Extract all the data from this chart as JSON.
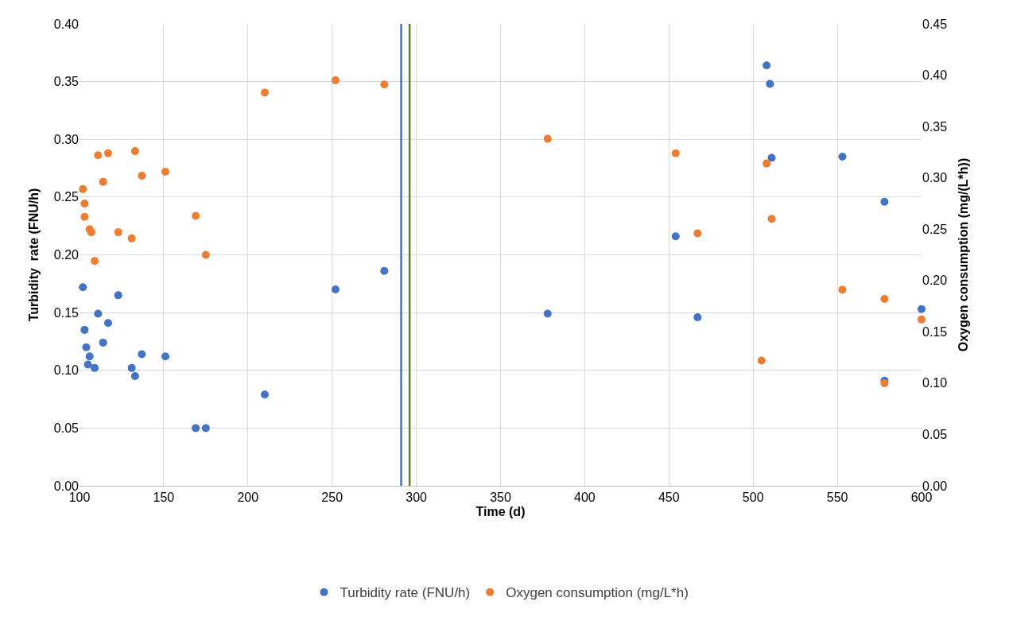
{
  "chart_data": {
    "type": "scatter",
    "xlabel": "Time (d)",
    "ylabel": "Turbidity  rate (FNU/h)",
    "y2label": "Oxygen consumption (mg/(L*h))",
    "xlim": [
      100,
      600
    ],
    "xticks": [
      100,
      150,
      200,
      250,
      300,
      350,
      400,
      450,
      500,
      550,
      600
    ],
    "ylim": [
      0,
      0.4
    ],
    "yticks": [
      {
        "value": 0,
        "label": "0.00"
      },
      {
        "value": 0.05,
        "label": "0.05"
      },
      {
        "value": 0.1,
        "label": "0.10"
      },
      {
        "value": 0.15,
        "label": "0.15"
      },
      {
        "value": 0.2,
        "label": "0.20"
      },
      {
        "value": 0.25,
        "label": "0.25"
      },
      {
        "value": 0.3,
        "label": "0.30"
      },
      {
        "value": 0.35,
        "label": "0.35"
      },
      {
        "value": 0.4,
        "label": "0.40"
      }
    ],
    "y2lim": [
      0,
      0.45
    ],
    "y2ticks": [
      {
        "value": 0,
        "label": "0.00"
      },
      {
        "value": 0.05,
        "label": "0.05"
      },
      {
        "value": 0.1,
        "label": "0.10"
      },
      {
        "value": 0.15,
        "label": "0.15"
      },
      {
        "value": 0.2,
        "label": "0.20"
      },
      {
        "value": 0.25,
        "label": "0.25"
      },
      {
        "value": 0.3,
        "label": "0.30"
      },
      {
        "value": 0.35,
        "label": "0.35"
      },
      {
        "value": 0.4,
        "label": "0.40"
      },
      {
        "value": 0.45,
        "label": "0.45"
      }
    ],
    "grid": true,
    "legend": "bottom",
    "marker": "circle",
    "series": [
      {
        "name": "Turbidity rate (FNU/h)",
        "color": "#4472c4",
        "x": [
          102,
          103,
          104,
          106,
          105,
          109,
          111,
          114,
          117,
          123,
          131,
          133,
          137,
          151,
          169,
          175,
          210,
          252,
          281,
          378,
          454,
          467,
          508,
          510,
          511,
          553,
          578,
          578,
          600
        ],
        "values": [
          0.172,
          0.135,
          0.12,
          0.112,
          0.105,
          0.102,
          0.149,
          0.124,
          0.141,
          0.165,
          0.102,
          0.095,
          0.114,
          0.112,
          0.05,
          0.05,
          0.079,
          0.17,
          0.186,
          0.149,
          0.216,
          0.146,
          0.364,
          0.348,
          0.284,
          0.285,
          0.246,
          0.091,
          0.153
        ]
      },
      {
        "name": "Oxygen consumption (mg/L*h)",
        "color": "#ed7d31",
        "axis": "y2",
        "x": [
          102,
          103,
          103,
          106,
          107,
          109,
          111,
          114,
          117,
          123,
          131,
          133,
          137,
          151,
          169,
          175,
          210,
          252,
          281,
          378,
          454,
          467,
          505,
          508,
          511,
          553,
          578,
          578,
          600
        ],
        "values": [
          0.289,
          0.275,
          0.262,
          0.25,
          0.247,
          0.219,
          0.322,
          0.296,
          0.324,
          0.247,
          0.241,
          0.326,
          0.302,
          0.306,
          0.263,
          0.225,
          0.383,
          0.395,
          0.391,
          0.338,
          0.324,
          0.246,
          0.122,
          0.314,
          0.26,
          0.191,
          0.182,
          0.1,
          0.162
        ]
      }
    ],
    "ref_lines": [
      {
        "axis": "x",
        "value": 291,
        "color": "#4472c4",
        "line_style": "solid"
      },
      {
        "axis": "x",
        "value": 296,
        "color": "#548235",
        "line_style": "solid"
      }
    ]
  }
}
